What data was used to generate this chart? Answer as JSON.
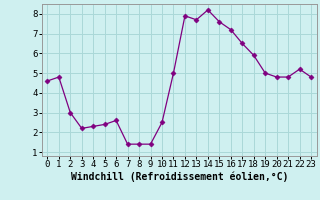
{
  "x": [
    0,
    1,
    2,
    3,
    4,
    5,
    6,
    7,
    8,
    9,
    10,
    11,
    12,
    13,
    14,
    15,
    16,
    17,
    18,
    19,
    20,
    21,
    22,
    23
  ],
  "y": [
    4.6,
    4.8,
    3.0,
    2.2,
    2.3,
    2.4,
    2.6,
    1.4,
    1.4,
    1.4,
    2.5,
    5.0,
    7.9,
    7.7,
    8.2,
    7.6,
    7.2,
    6.5,
    5.9,
    5.0,
    4.8,
    4.8,
    5.2,
    4.8
  ],
  "line_color": "#800080",
  "marker": "D",
  "marker_size": 2.5,
  "bg_color": "#cff0f0",
  "grid_color": "#aad8d8",
  "xlabel": "Windchill (Refroidissement éolien,°C)",
  "xlim_min": -0.5,
  "xlim_max": 23.5,
  "ylim_min": 0.8,
  "ylim_max": 8.5,
  "xticks": [
    0,
    1,
    2,
    3,
    4,
    5,
    6,
    7,
    8,
    9,
    10,
    11,
    12,
    13,
    14,
    15,
    16,
    17,
    18,
    19,
    20,
    21,
    22,
    23
  ],
  "yticks": [
    1,
    2,
    3,
    4,
    5,
    6,
    7,
    8
  ],
  "xlabel_fontsize": 7,
  "tick_fontsize": 6.5
}
